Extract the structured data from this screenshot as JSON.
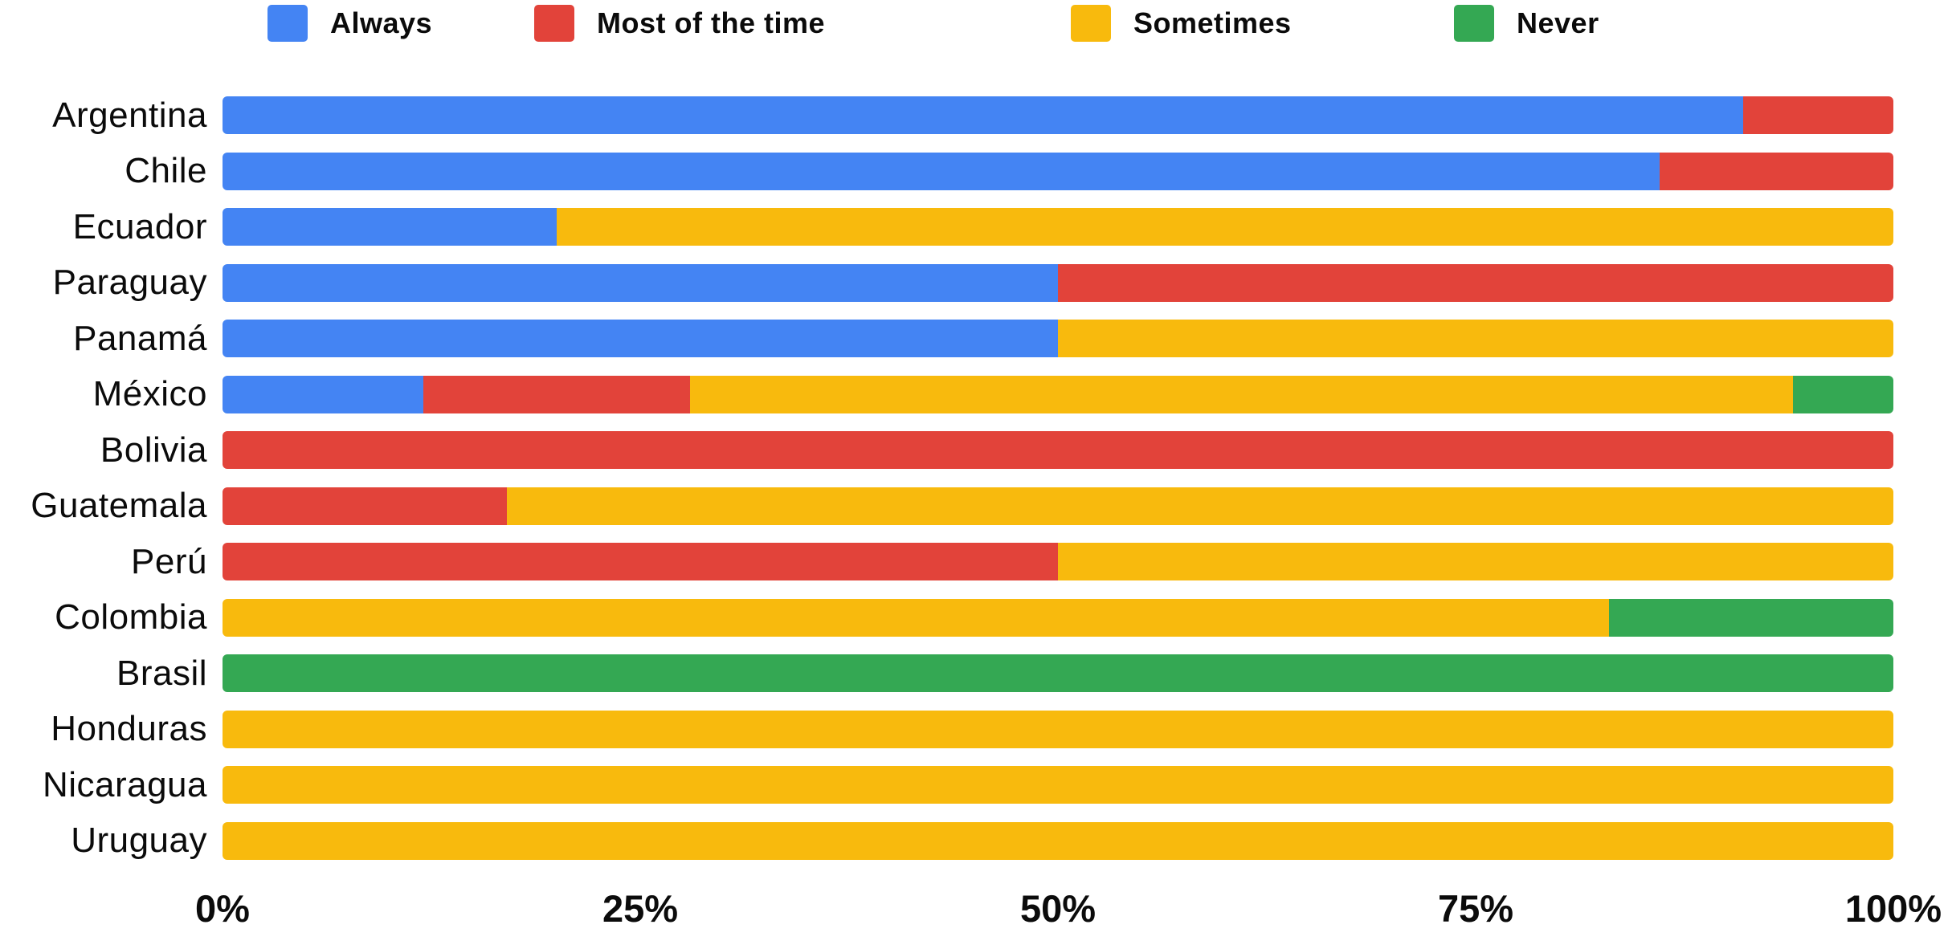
{
  "chart_data": {
    "type": "bar",
    "orientation": "horizontal",
    "stacked": true,
    "units": "percent",
    "title": "",
    "xlabel": "",
    "ylabel": "",
    "xlim": [
      0,
      100
    ],
    "grid": false,
    "legend_position": "top",
    "categories": [
      "Argentina",
      "Chile",
      "Ecuador",
      "Paraguay",
      "Panamá",
      "México",
      "Bolivia",
      "Guatemala",
      "Perú",
      "Colombia",
      "Brasil",
      "Honduras",
      "Nicaragua",
      "Uruguay"
    ],
    "series": [
      {
        "name": "Always",
        "color": "#4484F3",
        "values": [
          91,
          86,
          20,
          50,
          50,
          12,
          0,
          0,
          0,
          0,
          0,
          0,
          0,
          0
        ]
      },
      {
        "name": "Most of the time",
        "color": "#E2433A",
        "values": [
          9,
          14,
          0,
          50,
          0,
          16,
          100,
          17,
          50,
          0,
          0,
          0,
          0,
          0
        ]
      },
      {
        "name": "Sometimes",
        "color": "#F8BA0D",
        "values": [
          0,
          0,
          80,
          0,
          50,
          66,
          0,
          83,
          50,
          83,
          0,
          100,
          100,
          100
        ]
      },
      {
        "name": "Never",
        "color": "#34A853",
        "values": [
          0,
          0,
          0,
          0,
          0,
          6,
          0,
          0,
          0,
          17,
          100,
          0,
          0,
          0
        ]
      }
    ],
    "x_ticks": [
      "0%",
      "25%",
      "50%",
      "75%",
      "100%"
    ]
  },
  "colors": {
    "background": "#ffffff",
    "text": "#0b0b0b",
    "always": "#4484F3",
    "most_of_the_time": "#E2433A",
    "sometimes": "#F8BA0D",
    "never": "#34A853"
  }
}
